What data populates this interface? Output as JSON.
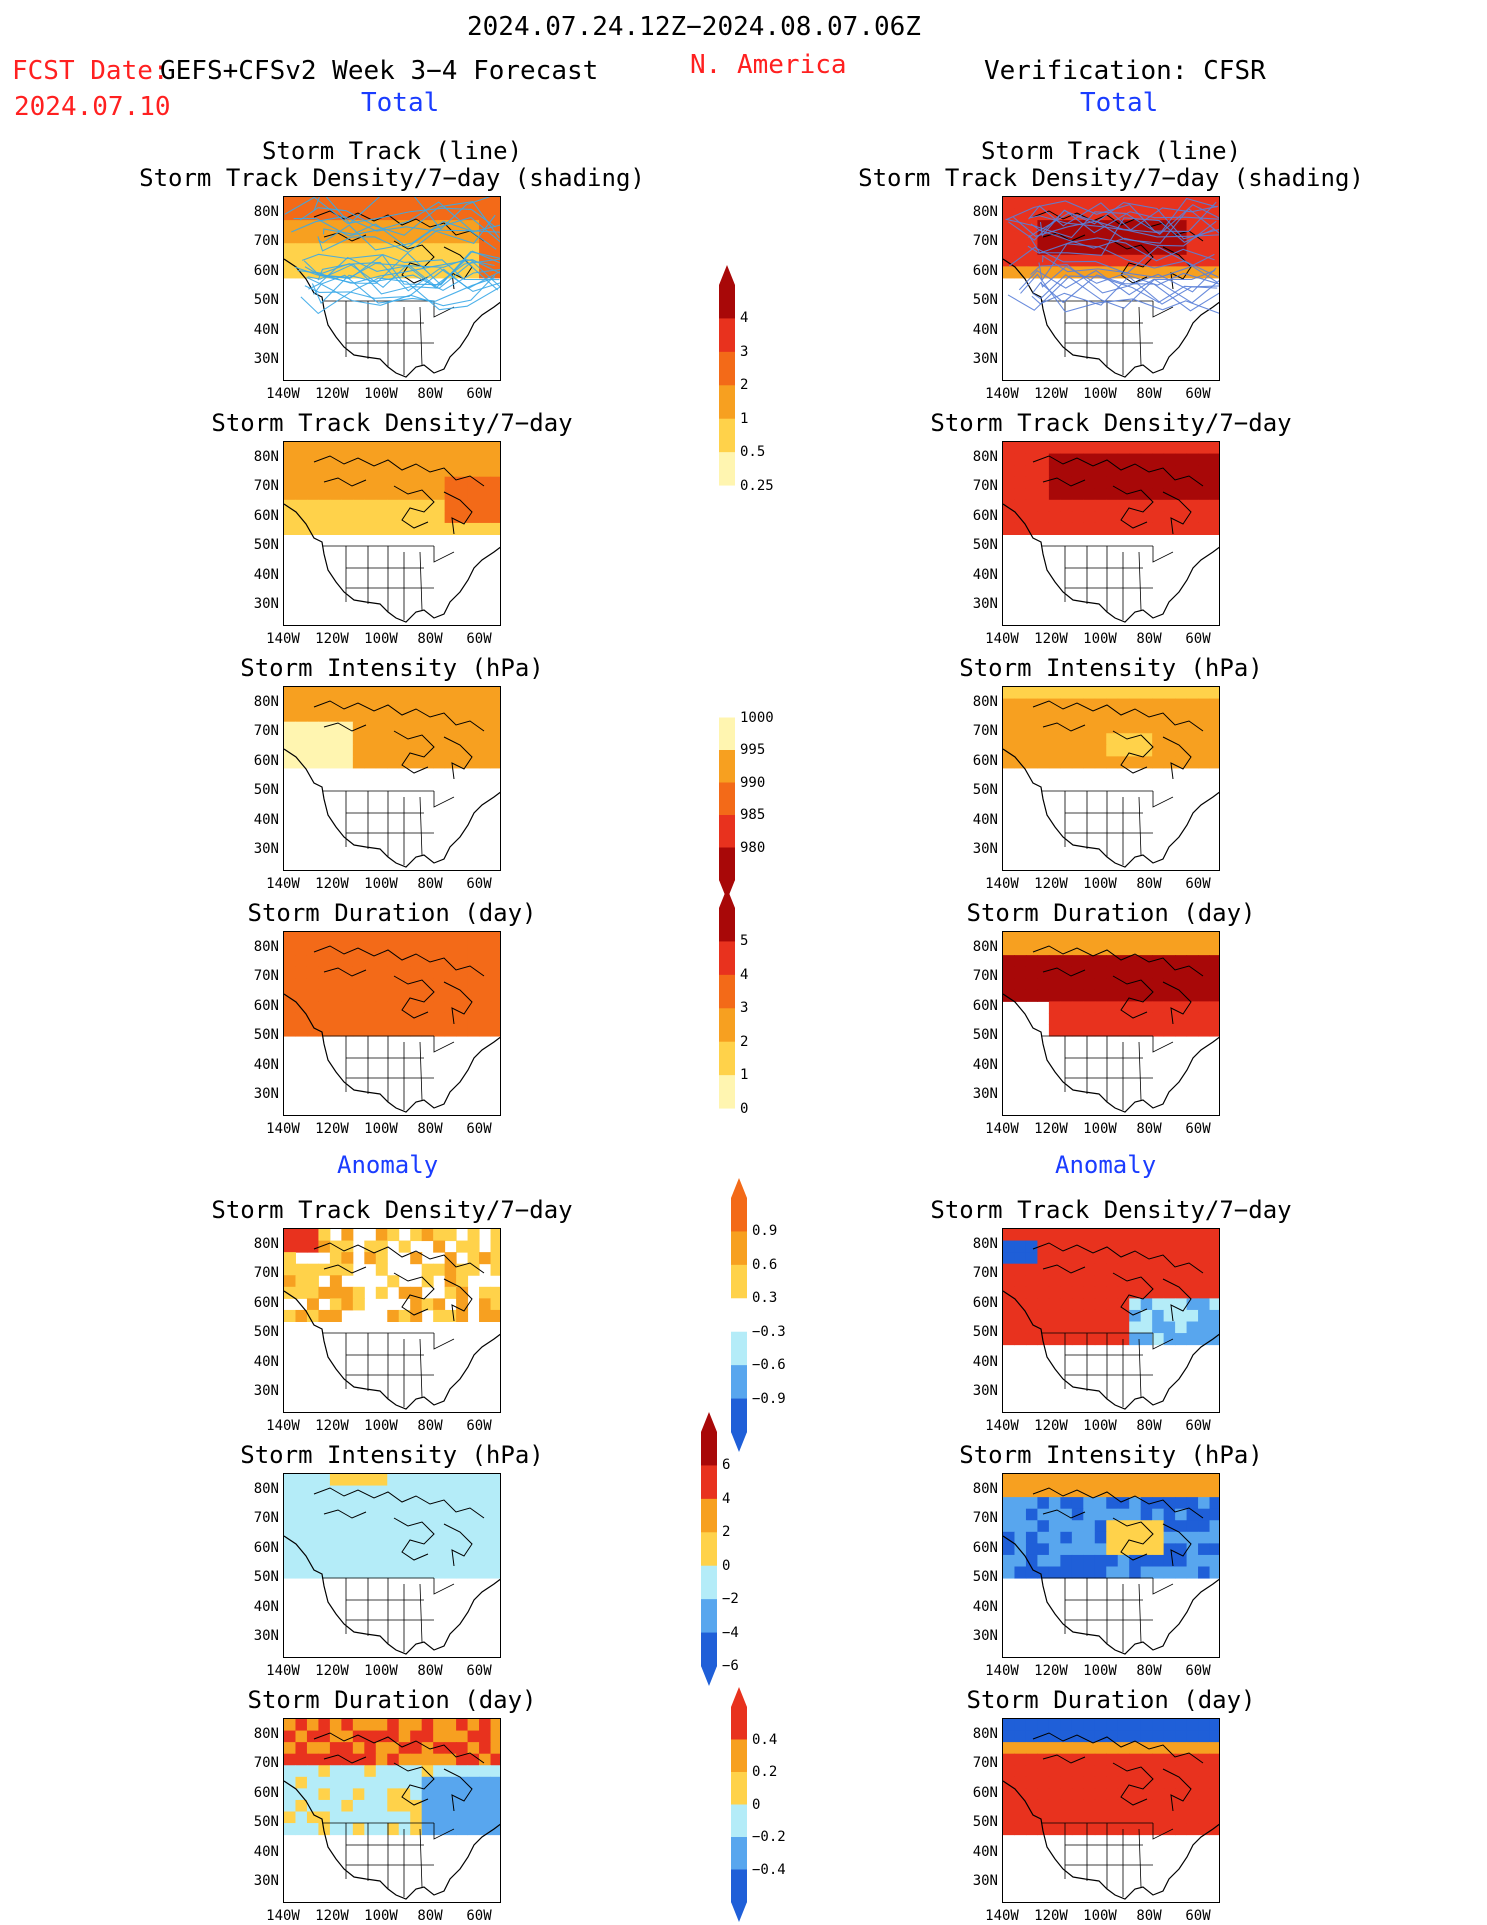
{
  "header": {
    "period": "2024.07.24.12Z−2024.08.07.06Z",
    "fcst_date_label": "FCST Date:",
    "model": "GEFS+CFSv2 Week 3−4 Forecast",
    "fcst_date": "2024.07.10",
    "region": "N. America",
    "verification": "Verification: CFSR",
    "left_total": "Total",
    "right_total": "Total"
  },
  "sections": {
    "anomaly_left": "Anomaly",
    "anomaly_right": "Anomaly"
  },
  "panel_titles": {
    "track_line": "Storm Track (line)",
    "track_shading": "Storm Track Density/7−day (shading)",
    "density": "Storm Track Density/7−day",
    "intensity": "Storm Intensity (hPa)",
    "duration": "Storm Duration (day)"
  },
  "axes": {
    "lat": [
      "80N",
      "70N",
      "60N",
      "50N",
      "40N",
      "30N"
    ],
    "lon": [
      "140W",
      "120W",
      "100W",
      "80W",
      "60W"
    ]
  },
  "colorbars": {
    "density_total": [
      "4",
      "3",
      "2",
      "1",
      "0.5",
      "0.25"
    ],
    "intensity_total": [
      "1000",
      "995",
      "990",
      "985",
      "980"
    ],
    "duration_total": [
      "5",
      "4",
      "3",
      "2",
      "1",
      "0"
    ],
    "density_anom": [
      "0.9",
      "0.6",
      "0.3",
      "−0.3",
      "−0.6",
      "−0.9"
    ],
    "intensity_anom": [
      "6",
      "4",
      "2",
      "0",
      "−2",
      "−4",
      "−6"
    ],
    "duration_anom": [
      "0.4",
      "0.2",
      "0",
      "−0.2",
      "−0.4"
    ]
  },
  "colors": {
    "title_red": "#ff2020",
    "title_blue": "#1a3cff",
    "light_yellow": "#fff5b0",
    "yellow": "#ffd24a",
    "orange": "#f7a020",
    "dark_orange": "#f36a18",
    "red": "#e8321e",
    "dark_red": "#a80808",
    "light_blue": "#b4ecf8",
    "blue": "#58a6ee",
    "dark_blue": "#1f5fd8"
  }
}
